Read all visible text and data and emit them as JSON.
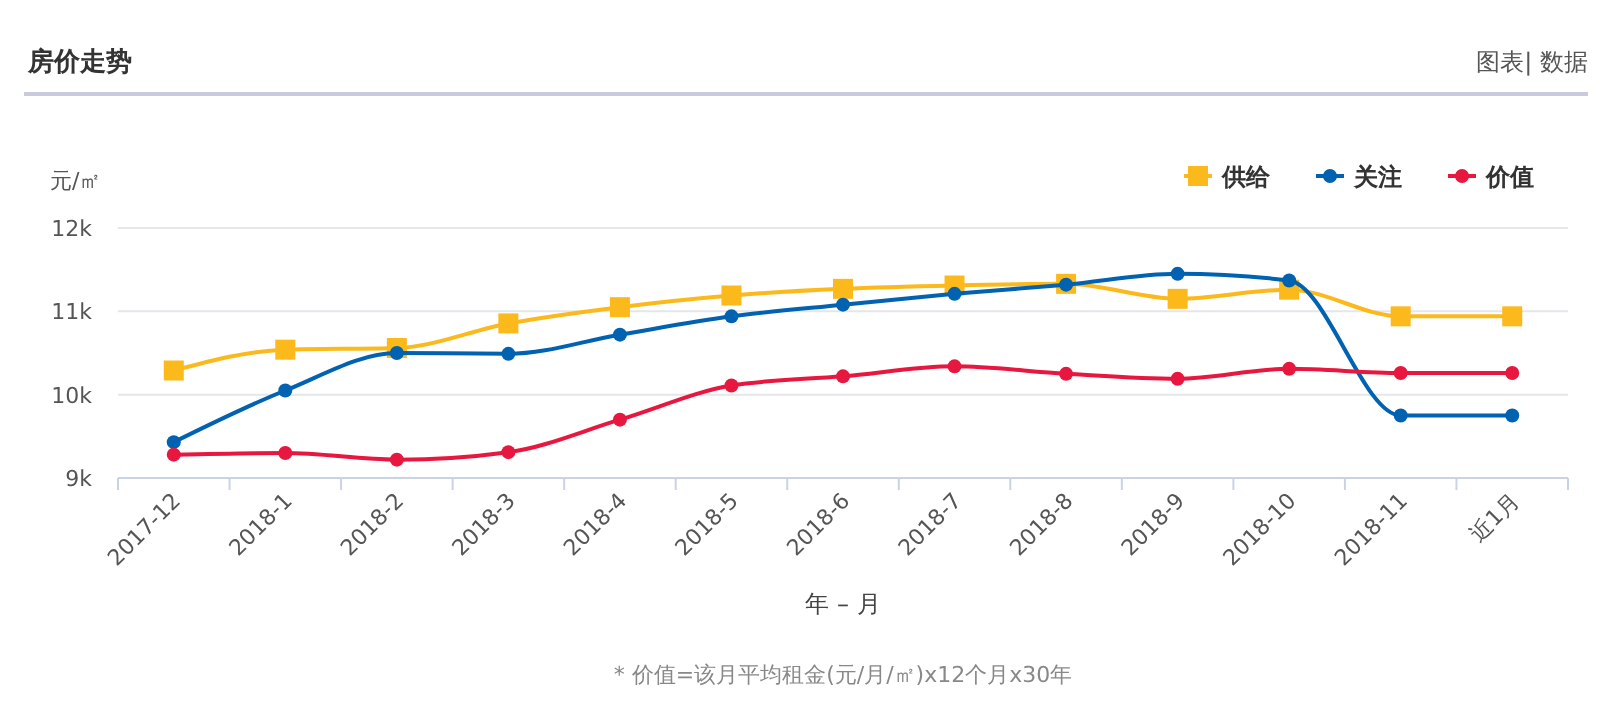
{
  "chart_data": {
    "type": "line",
    "title": "房价走势",
    "ylabel": "元/㎡",
    "xlabel": "年 – 月",
    "annotations": [
      "图表| 数据",
      "* 价值=该月平均租金(元/月/㎡)x12个月x30年"
    ],
    "categories": [
      "2017-12",
      "2018-1",
      "2018-2",
      "2018-3",
      "2018-4",
      "2018-5",
      "2018-6",
      "2018-7",
      "2018-8",
      "2018-9",
      "2018-10",
      "2018-11",
      "近1月"
    ],
    "series": [
      {
        "name": "供给",
        "color": "#fbb91c",
        "marker": "square",
        "values": [
          10290,
          10540,
          10560,
          10855,
          11050,
          11190,
          11270,
          11310,
          11330,
          11150,
          11260,
          10940,
          10940
        ]
      },
      {
        "name": "关注",
        "color": "#0062b1",
        "marker": "circle",
        "values": [
          9430,
          10050,
          10500,
          10490,
          10720,
          10940,
          11080,
          11210,
          11320,
          11450,
          11370,
          9750,
          9750
        ]
      },
      {
        "name": "价值",
        "color": "#e8173f",
        "marker": "circle",
        "values": [
          9280,
          9300,
          9220,
          9310,
          9700,
          10110,
          10220,
          10340,
          10250,
          10190,
          10310,
          10260,
          10260
        ]
      }
    ],
    "ylim": [
      9000,
      12000
    ],
    "yticks": [
      {
        "value": 9000,
        "label": "9k"
      },
      {
        "value": 10000,
        "label": "10k"
      },
      {
        "value": 11000,
        "label": "11k"
      },
      {
        "value": 12000,
        "label": "12k"
      }
    ],
    "grid": "y",
    "legend": "top right",
    "line_style": "solid"
  }
}
